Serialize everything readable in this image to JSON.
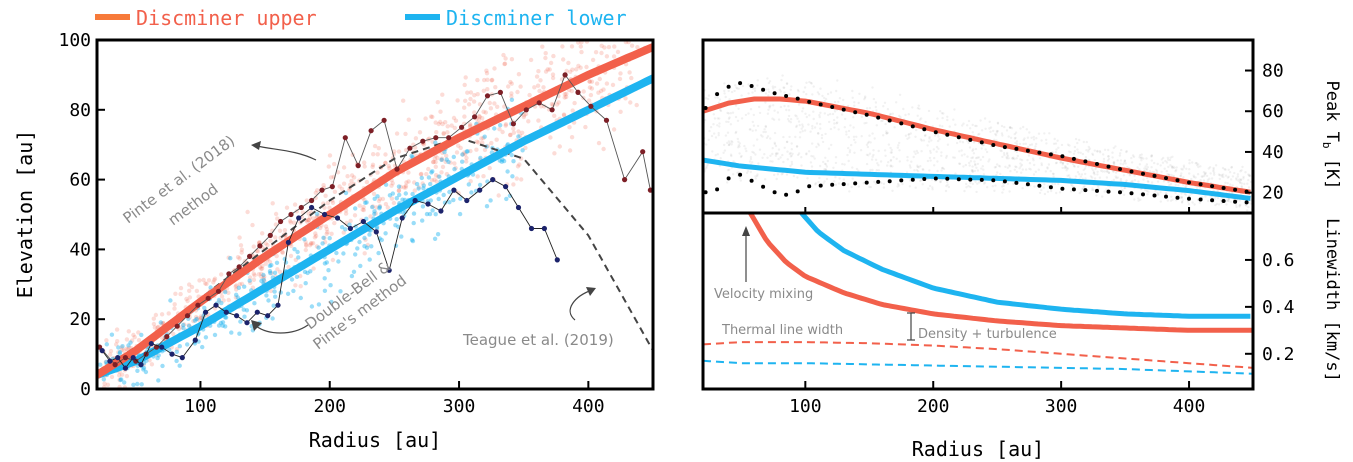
{
  "colors": {
    "upper": "#f2604b",
    "lower": "#1eb4f0",
    "upper_legend_line": "#f77a3a",
    "upper_legend_text": "#f2604b",
    "lower_legend_text": "#1eb4f0",
    "pinte_points": "#7d1f26",
    "db_points": "#1c236b",
    "annotation": "#8a8a8a",
    "model_curve": "#444444"
  },
  "legend": {
    "upper": "Discminer upper",
    "lower": "Discminer lower"
  },
  "chart_data": [
    {
      "type": "line",
      "panel": "left",
      "xlabel": "Radius [au]",
      "ylabel": "Elevation [au]",
      "xlim": [
        20,
        450
      ],
      "ylim": [
        0,
        100
      ],
      "xticks": [
        100,
        200,
        300,
        400
      ],
      "yticks": [
        0,
        20,
        40,
        60,
        80,
        100
      ],
      "grid": false,
      "series": [
        {
          "name": "Discminer upper",
          "x": [
            20,
            50,
            100,
            150,
            200,
            250,
            300,
            350,
            400,
            450
          ],
          "y": [
            4,
            11,
            25,
            38,
            50,
            62,
            72,
            81,
            90,
            98
          ]
        },
        {
          "name": "Discminer lower",
          "x": [
            20,
            50,
            100,
            150,
            200,
            250,
            300,
            350,
            400,
            450
          ],
          "y": [
            4,
            8,
            18,
            29,
            40,
            51,
            61,
            71,
            80,
            89
          ]
        },
        {
          "name": "Pinte et al. (2018) method",
          "x": [
            22,
            34,
            42,
            50,
            58,
            66,
            74,
            82,
            90,
            98,
            106,
            114,
            122,
            130,
            138,
            146,
            154,
            162,
            170,
            178,
            186,
            194,
            202,
            212,
            222,
            232,
            242,
            252,
            262,
            272,
            282,
            292,
            302,
            312,
            322,
            332,
            342,
            352,
            362,
            372,
            382,
            392,
            402,
            414,
            428,
            442,
            448
          ],
          "y": [
            12,
            7,
            9,
            8,
            10,
            12,
            15,
            18,
            21,
            24,
            26,
            28,
            33,
            35,
            38,
            41,
            44,
            48,
            50,
            52,
            54,
            57,
            58,
            72,
            64,
            74,
            77,
            63,
            69,
            71,
            72,
            72,
            75,
            78,
            84,
            85,
            76,
            80,
            82,
            80,
            90,
            85,
            81,
            77,
            60,
            68,
            57
          ]
        },
        {
          "name": "Double-Bell & Pinte's method",
          "x": [
            24,
            30,
            36,
            42,
            48,
            54,
            62,
            70,
            78,
            86,
            96,
            104,
            112,
            120,
            128,
            136,
            144,
            152,
            160,
            168,
            176,
            186,
            196,
            206,
            216,
            226,
            236,
            246,
            256,
            266,
            276,
            286,
            296,
            306,
            316,
            326,
            336,
            346,
            356,
            366,
            376
          ],
          "y": [
            11,
            8,
            9,
            6,
            9,
            7,
            13,
            12,
            10,
            9,
            14,
            22,
            24,
            22,
            21,
            19,
            22,
            21,
            24,
            42,
            49,
            52,
            50,
            49,
            46,
            48,
            45,
            34,
            49,
            54,
            53,
            51,
            57,
            54,
            57,
            60,
            58,
            52,
            46,
            46,
            37
          ]
        },
        {
          "name": "Teague et al. (2019)",
          "x": [
            20,
            50,
            100,
            150,
            200,
            250,
            300,
            350,
            400,
            450
          ],
          "y": [
            5,
            12,
            26,
            40,
            54,
            66,
            72,
            66,
            44,
            11
          ]
        }
      ]
    },
    {
      "type": "line",
      "panel": "right-top",
      "xlabel": "",
      "ylabel": "Peak T_b [K]",
      "xlim": [
        20,
        450
      ],
      "ylim": [
        10,
        95
      ],
      "yticks": [
        20,
        40,
        60,
        80
      ],
      "grid": false,
      "series": [
        {
          "name": "Discminer upper",
          "x": [
            20,
            40,
            60,
            80,
            100,
            150,
            200,
            250,
            300,
            350,
            400,
            450
          ],
          "y": [
            60,
            64,
            66,
            66,
            65,
            59,
            51,
            44,
            37,
            31,
            25,
            20
          ]
        },
        {
          "name": "Discminer lower",
          "x": [
            20,
            50,
            100,
            150,
            200,
            250,
            300,
            350,
            400,
            450
          ],
          "y": [
            36,
            33,
            30,
            29,
            28,
            27,
            26,
            24,
            21,
            17
          ]
        },
        {
          "name": "dotted upper",
          "x": [
            20,
            30,
            40,
            50,
            60,
            70,
            80,
            90,
            100,
            150,
            200,
            250,
            300,
            350,
            400,
            450
          ],
          "y": [
            60,
            68,
            72,
            74,
            72,
            70,
            68,
            67,
            65,
            58,
            50,
            43,
            38,
            31,
            25,
            20
          ]
        },
        {
          "name": "dotted lower",
          "x": [
            20,
            30,
            40,
            50,
            60,
            70,
            80,
            90,
            100,
            150,
            200,
            250,
            300,
            350,
            400,
            450
          ],
          "y": [
            20,
            21,
            27,
            29,
            25,
            22,
            19,
            19,
            23,
            25,
            27,
            26,
            22,
            20,
            17,
            15
          ]
        }
      ]
    },
    {
      "type": "line",
      "panel": "right-bottom",
      "xlabel": "Radius [au]",
      "ylabel": "Linewidth [km/s]",
      "xlim": [
        20,
        450
      ],
      "ylim": [
        0.05,
        0.8
      ],
      "xticks": [
        100,
        200,
        300,
        400
      ],
      "yticks": [
        0.2,
        0.4,
        0.6
      ],
      "grid": false,
      "series": [
        {
          "name": "Discminer upper",
          "x": [
            57,
            70,
            85,
            100,
            130,
            160,
            200,
            250,
            300,
            350,
            400,
            450
          ],
          "y": [
            0.8,
            0.68,
            0.59,
            0.53,
            0.46,
            0.41,
            0.37,
            0.34,
            0.32,
            0.31,
            0.3,
            0.3
          ]
        },
        {
          "name": "Discminer lower",
          "x": [
            97,
            110,
            130,
            160,
            200,
            250,
            300,
            350,
            400,
            450
          ],
          "y": [
            0.8,
            0.72,
            0.64,
            0.56,
            0.48,
            0.42,
            0.39,
            0.37,
            0.36,
            0.36
          ]
        },
        {
          "name": "upper thermal",
          "x": [
            20,
            50,
            100,
            150,
            200,
            250,
            300,
            350,
            400,
            450
          ],
          "y": [
            0.24,
            0.25,
            0.25,
            0.245,
            0.235,
            0.22,
            0.2,
            0.18,
            0.16,
            0.14
          ]
        },
        {
          "name": "lower thermal",
          "x": [
            20,
            50,
            100,
            150,
            200,
            250,
            300,
            350,
            400,
            450
          ],
          "y": [
            0.17,
            0.16,
            0.16,
            0.155,
            0.15,
            0.145,
            0.14,
            0.135,
            0.125,
            0.115
          ]
        }
      ]
    }
  ],
  "annotations": {
    "pinte_line1": "Pinte et al. (2018)",
    "pinte_line2": "method",
    "db_line1": "Double-Bell &",
    "db_line2": "Pinte's method",
    "teague": "Teague et al. (2019)",
    "velocity_mixing": "Velocity mixing",
    "thermal": "Thermal line width",
    "density": "Density + turbulence"
  }
}
